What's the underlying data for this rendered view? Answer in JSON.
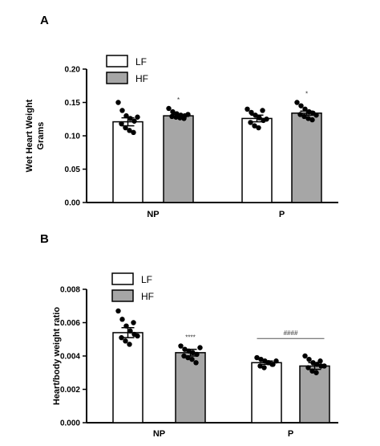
{
  "chart_data": [
    {
      "type": "bar",
      "panel": "A",
      "ylabel": [
        "Wet Heart Weight",
        "Grams"
      ],
      "ylim": [
        0,
        0.2
      ],
      "yticks": [
        "0.00",
        "0.05",
        "0.10",
        "0.15",
        "0.20"
      ],
      "categories": [
        "NP",
        "P"
      ],
      "series": [
        {
          "name": "LF",
          "color": "#ffffff",
          "values": [
            0.121,
            0.126
          ],
          "sem": [
            0.006,
            0.005
          ],
          "points": [
            [
              0.15,
              0.138,
              0.13,
              0.126,
              0.122,
              0.118,
              0.112,
              0.108,
              0.105,
              0.128
            ],
            [
              0.14,
              0.135,
              0.131,
              0.127,
              0.123,
              0.12,
              0.115,
              0.112,
              0.138,
              0.125
            ]
          ]
        },
        {
          "name": "HF",
          "color": "#a6a6a6",
          "values": [
            0.13,
            0.134
          ],
          "sem": [
            0.002,
            0.003
          ],
          "points": [
            [
              0.141,
              0.136,
              0.133,
              0.131,
              0.13,
              0.129,
              0.128,
              0.127,
              0.126,
              0.132
            ],
            [
              0.15,
              0.145,
              0.14,
              0.136,
              0.134,
              0.132,
              0.129,
              0.126,
              0.124,
              0.131
            ]
          ]
        }
      ],
      "annotations": [
        {
          "text": "*",
          "category": "NP",
          "series": "HF"
        },
        {
          "text": "*",
          "category": "P",
          "series": "HF"
        }
      ],
      "legend": "top-left"
    },
    {
      "type": "bar",
      "panel": "B",
      "ylabel": [
        "Heart/body weight ratio"
      ],
      "ylim": [
        0,
        0.008
      ],
      "yticks": [
        "0.000",
        "0.002",
        "0.004",
        "0.006",
        "0.008"
      ],
      "categories": [
        "NP",
        "P"
      ],
      "series": [
        {
          "name": "LF",
          "color": "#ffffff",
          "values": [
            0.0054,
            0.0036
          ],
          "sem": [
            0.0003,
            0.0001
          ],
          "points": [
            [
              0.0067,
              0.0062,
              0.0058,
              0.0055,
              0.0053,
              0.0051,
              0.0049,
              0.0047,
              0.006,
              0.0052
            ],
            [
              0.0039,
              0.0038,
              0.0037,
              0.0036,
              0.0035,
              0.0034,
              0.0033,
              0.0036,
              0.0035,
              0.0037
            ]
          ]
        },
        {
          "name": "HF",
          "color": "#a6a6a6",
          "values": [
            0.0042,
            0.0034
          ],
          "sem": [
            0.0002,
            0.0002
          ],
          "points": [
            [
              0.0046,
              0.0044,
              0.0043,
              0.0042,
              0.0041,
              0.004,
              0.0039,
              0.0038,
              0.0036,
              0.0045
            ],
            [
              0.004,
              0.0038,
              0.0036,
              0.0035,
              0.0034,
              0.0033,
              0.0031,
              0.003,
              0.0037,
              0.0034
            ]
          ]
        }
      ],
      "annotations": [
        {
          "text": "****",
          "category": "NP",
          "series": "HF"
        },
        {
          "text": "####",
          "category": "P",
          "bracket": true
        }
      ],
      "legend": "top-left"
    }
  ]
}
